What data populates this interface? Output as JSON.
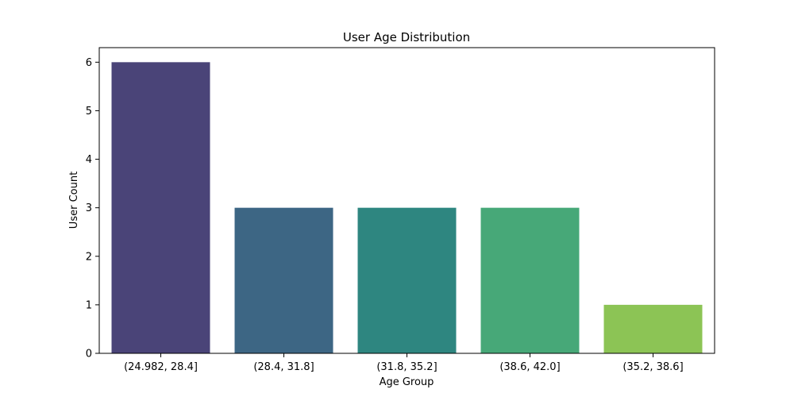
{
  "chart_data": {
    "type": "bar",
    "title": "User Age Distribution",
    "xlabel": "Age Group",
    "ylabel": "User Count",
    "categories": [
      "(24.982, 28.4]",
      "(28.4, 31.8]",
      "(31.8, 35.2]",
      "(38.6, 42.0]",
      "(35.2, 38.6]"
    ],
    "values": [
      6,
      3,
      3,
      3,
      1
    ],
    "colors": [
      "#4a4478",
      "#3d6684",
      "#2e8680",
      "#47a878",
      "#8cc455"
    ],
    "yticks": [
      0,
      1,
      2,
      3,
      4,
      5,
      6
    ],
    "ylim": [
      0,
      6.3
    ],
    "grid": false,
    "legend": "none"
  }
}
